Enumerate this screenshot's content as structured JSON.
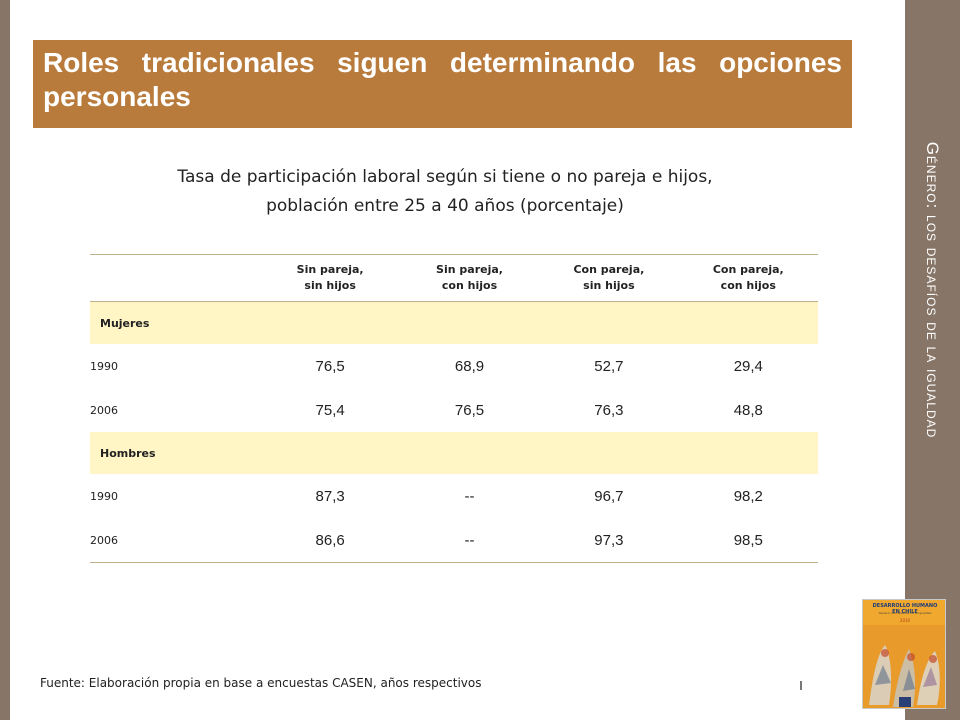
{
  "side_title": "Género: los desafíos de la igualdad",
  "banner": {
    "title": "Roles tradicionales siguen determinando las opciones personales"
  },
  "subtitle": {
    "line1": "Tasa de participación laboral según si tiene o no pareja e hijos,",
    "line2": "población entre 25 a 40 años (porcentaje)"
  },
  "table": {
    "columns": [
      {
        "line1": "Sin pareja,",
        "line2": "sin hijos"
      },
      {
        "line1": "Sin pareja,",
        "line2": "con hijos"
      },
      {
        "line1": "Con pareja,",
        "line2": "sin hijos"
      },
      {
        "line1": "Con pareja,",
        "line2": "con hijos"
      }
    ],
    "groups": [
      {
        "label": "Mujeres",
        "rows": [
          {
            "year": "1990",
            "values": [
              "76,5",
              "68,9",
              "52,7",
              "29,4"
            ]
          },
          {
            "year": "2006",
            "values": [
              "75,4",
              "76,5",
              "76,3",
              "48,8"
            ]
          }
        ]
      },
      {
        "label": "Hombres",
        "rows": [
          {
            "year": "1990",
            "values": [
              "87,3",
              "--",
              "96,7",
              "98,2"
            ]
          },
          {
            "year": "2006",
            "values": [
              "86,6",
              "--",
              "97,3",
              "98,5"
            ]
          }
        ]
      }
    ]
  },
  "source": "Fuente: Elaboración propia en base a encuestas CASEN, años respectivos",
  "book_cover": {
    "title": "DESARROLLO HUMANO EN CHILE",
    "subtitle": "Género: los desafíos de la igualdad",
    "year": "2010"
  },
  "colors": {
    "side_panel": "#877668",
    "banner": "#b87b3c",
    "group_row": "#fff5c5",
    "table_rule": "#bdb08a"
  }
}
